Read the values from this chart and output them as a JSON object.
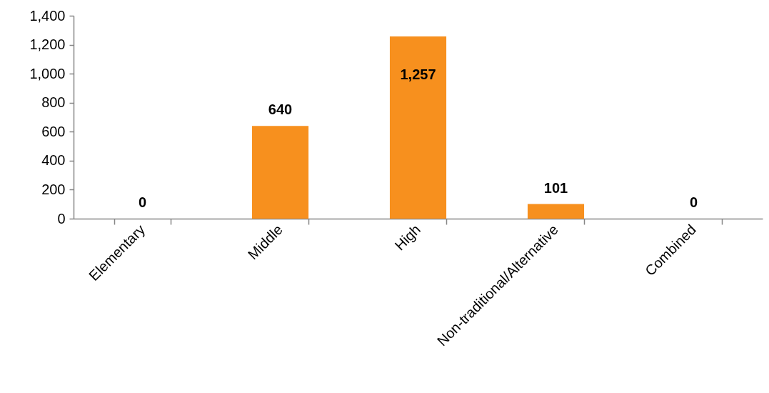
{
  "chart_data": {
    "type": "bar",
    "categories": [
      "Elementary",
      "Middle",
      "High",
      "Non-traditional/Alternative",
      "Combined"
    ],
    "values": [
      0,
      640,
      1257,
      101,
      0
    ],
    "value_labels": [
      "0",
      "640",
      "1,257",
      "101",
      "0"
    ],
    "color": "#f7901e",
    "ylim": [
      0,
      1400
    ],
    "yticks": [
      0,
      200,
      400,
      600,
      800,
      {
        "value": 1000,
        "label": "1,000"
      },
      {
        "value": 1200,
        "label": "1,200"
      },
      {
        "value": 1400,
        "label": "1,400"
      }
    ]
  }
}
